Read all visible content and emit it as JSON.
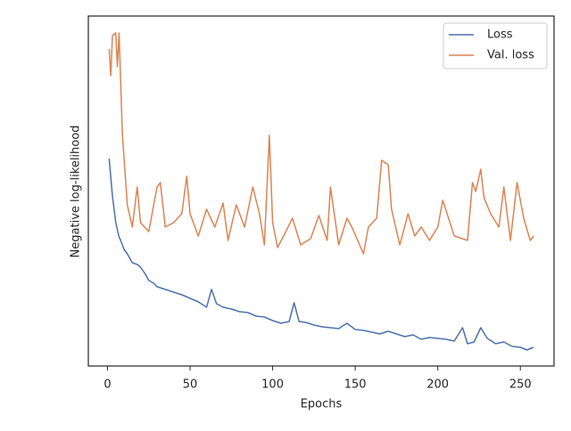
{
  "chart_data": {
    "type": "line",
    "xlabel": "Epochs",
    "ylabel": "Negative log-likelihood",
    "xlim": [
      -11.6,
      270.4
    ],
    "xticks": [
      0,
      50,
      100,
      150,
      200,
      250
    ],
    "ylim": [
      0,
      393
    ],
    "legend": "upper right",
    "series": [
      {
        "name": "Loss",
        "color": "#4c72b0",
        "x": [
          1,
          3,
          5,
          7,
          8,
          10,
          12,
          15,
          18,
          20,
          23,
          25,
          28,
          30,
          35,
          40,
          45,
          50,
          55,
          60,
          63,
          66,
          70,
          75,
          80,
          85,
          90,
          95,
          100,
          105,
          110,
          113,
          116,
          120,
          125,
          130,
          140,
          145,
          150,
          155,
          160,
          165,
          170,
          175,
          180,
          185,
          190,
          195,
          200,
          205,
          210,
          215,
          218,
          222,
          226,
          230,
          235,
          240,
          245,
          250,
          254,
          258
        ],
        "values": [
          233,
          191,
          161,
          145,
          141,
          131,
          126,
          116,
          114,
          111,
          103,
          96,
          93,
          89,
          86,
          83,
          80,
          76,
          72,
          66,
          86,
          70,
          66,
          64,
          61,
          60,
          56,
          55,
          51,
          48,
          50,
          71,
          50,
          49,
          46,
          44,
          42,
          48,
          41,
          40,
          38,
          36,
          39,
          36,
          33,
          35,
          30,
          32,
          31,
          30,
          28,
          43,
          25,
          27,
          43,
          31,
          25,
          27,
          22,
          21,
          18,
          21
        ]
      },
      {
        "name": "Val. loss",
        "color": "#dd8452",
        "x": [
          1,
          2,
          3,
          5,
          6,
          7,
          9,
          12,
          15,
          18,
          20,
          25,
          30,
          32,
          35,
          40,
          45,
          48,
          50,
          55,
          60,
          65,
          70,
          73,
          78,
          83,
          88,
          92,
          95,
          98,
          100,
          103,
          108,
          112,
          117,
          123,
          128,
          133,
          135,
          140,
          145,
          148,
          155,
          158,
          163,
          166,
          170,
          172,
          177,
          182,
          186,
          190,
          195,
          200,
          203,
          210,
          218,
          221,
          223,
          226,
          228,
          232,
          237,
          240,
          244,
          248,
          252,
          256,
          258
        ],
        "values": [
          356,
          326,
          371,
          374,
          336,
          374,
          261,
          181,
          156,
          201,
          161,
          151,
          201,
          206,
          156,
          161,
          171,
          213,
          171,
          146,
          176,
          156,
          183,
          141,
          181,
          156,
          201,
          171,
          136,
          259,
          161,
          133,
          151,
          166,
          136,
          143,
          169,
          141,
          201,
          136,
          166,
          156,
          126,
          156,
          166,
          231,
          226,
          176,
          136,
          171,
          146,
          156,
          141,
          156,
          186,
          146,
          141,
          206,
          196,
          221,
          189,
          171,
          156,
          201,
          141,
          206,
          166,
          141,
          146
        ]
      }
    ]
  }
}
